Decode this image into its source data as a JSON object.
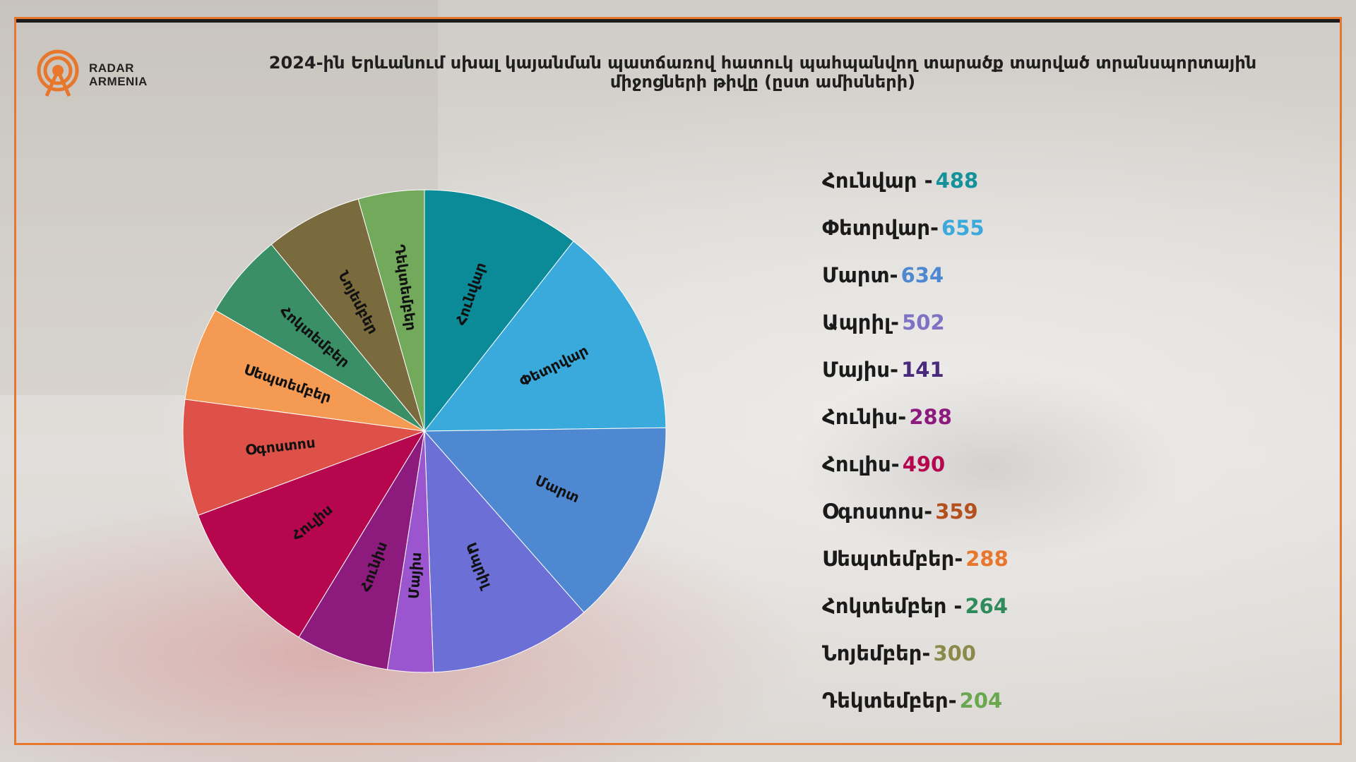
{
  "logo": {
    "line1": "RADAR",
    "line2": "ARMENIA",
    "color": "#e8772e"
  },
  "title": "2024-ին Երևանում սխալ կայանման պատճառով հատուկ պահպանվող տարածք տարված տրանսպորտային միջոցների թիվը (ըստ ամիսների)",
  "chart_data": {
    "type": "pie",
    "start_angle_deg": 0,
    "direction": "clockwise",
    "categories": [
      "Հունվար",
      "Փետրվար",
      "Մարտ",
      "Ապրիլ",
      "Մայիս",
      "Հունիս",
      "Հուլիս",
      "Օգոստոս",
      "Սեպտեմբեր",
      "Հոկտեմբեր",
      "Նոյեմբեր",
      "Դեկտեմբեր"
    ],
    "values": [
      488,
      655,
      634,
      502,
      141,
      288,
      490,
      359,
      288,
      264,
      300,
      204
    ],
    "colors": [
      "#0a8b97",
      "#3aa9dc",
      "#4d88d1",
      "#6b6fd6",
      "#9a55cf",
      "#8d1b7e",
      "#b5064e",
      "#de5148",
      "#f49a52",
      "#3a8f66",
      "#7a6b3f",
      "#72a95a"
    ]
  },
  "legend": {
    "items": [
      {
        "label": "Հունվար -",
        "value": "488",
        "color": "#14929a"
      },
      {
        "label": "Փետրվար-",
        "value": "655",
        "color": "#3ba9dc"
      },
      {
        "label": "Մարտ-",
        "value": "634",
        "color": "#4d88d1"
      },
      {
        "label": "Ապրիլ-",
        "value": "502",
        "color": "#7d72c4"
      },
      {
        "label": "Մայիս-",
        "value": "141",
        "color": "#4a2a7a"
      },
      {
        "label": "Հունիս-",
        "value": "288",
        "color": "#8d1b7e"
      },
      {
        "label": "Հուլիս-",
        "value": "490",
        "color": "#b5064e"
      },
      {
        "label": "Օգոստոս-",
        "value": "359",
        "color": "#b4501c"
      },
      {
        "label": "Սեպտեմբեր-",
        "value": "288",
        "color": "#e8772e"
      },
      {
        "label": "Հոկտեմբեր -",
        "value": "264",
        "color": "#2f8a5c"
      },
      {
        "label": "Նոյեմբեր-",
        "value": "300",
        "color": "#8c8a4a"
      },
      {
        "label": "Դեկտեմբեր-",
        "value": "204",
        "color": "#6aa84f"
      }
    ]
  }
}
